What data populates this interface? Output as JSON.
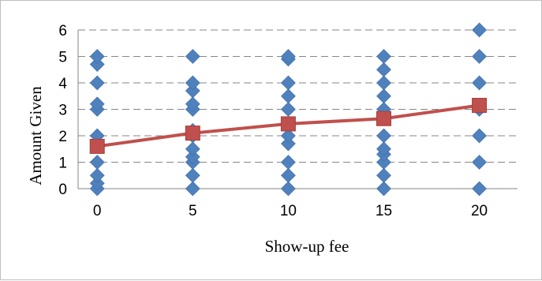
{
  "chart_data": {
    "type": "scatter",
    "title": "",
    "xlabel": "Show-up fee",
    "ylabel": "Amount Given",
    "xlim": [
      -1,
      22
    ],
    "ylim": [
      0,
      6
    ],
    "x_ticks": [
      0,
      5,
      10,
      15,
      20
    ],
    "y_ticks": [
      0,
      1,
      2,
      3,
      4,
      5,
      6
    ],
    "grid": "horizontal dashed",
    "legend": "none",
    "series": [
      {
        "type": "scatter",
        "marker": "diamond",
        "color": "#4f81bd",
        "points": [
          [
            0,
            0
          ],
          [
            0,
            0.2
          ],
          [
            0,
            0.5
          ],
          [
            0,
            1
          ],
          [
            0,
            2
          ],
          [
            0,
            3
          ],
          [
            0,
            3.2
          ],
          [
            0,
            4
          ],
          [
            0,
            4.7
          ],
          [
            0,
            5
          ],
          [
            5,
            0
          ],
          [
            5,
            0.5
          ],
          [
            5,
            1
          ],
          [
            5,
            1.2
          ],
          [
            5,
            1.5
          ],
          [
            5,
            2
          ],
          [
            5,
            2.2
          ],
          [
            5,
            3
          ],
          [
            5,
            3.2
          ],
          [
            5,
            3.7
          ],
          [
            5,
            4
          ],
          [
            5,
            5
          ],
          [
            10,
            0
          ],
          [
            10,
            0.5
          ],
          [
            10,
            1
          ],
          [
            10,
            1.7
          ],
          [
            10,
            2
          ],
          [
            10,
            3
          ],
          [
            10,
            3.5
          ],
          [
            10,
            4
          ],
          [
            10,
            4.9
          ],
          [
            10,
            5
          ],
          [
            15,
            0
          ],
          [
            15,
            0.5
          ],
          [
            15,
            1
          ],
          [
            15,
            1.3
          ],
          [
            15,
            1.5
          ],
          [
            15,
            2
          ],
          [
            15,
            3
          ],
          [
            15,
            3.5
          ],
          [
            15,
            4
          ],
          [
            15,
            4.5
          ],
          [
            15,
            5
          ],
          [
            20,
            0
          ],
          [
            20,
            1
          ],
          [
            20,
            2
          ],
          [
            20,
            3
          ],
          [
            20,
            4
          ],
          [
            20,
            5
          ],
          [
            20,
            6
          ]
        ]
      },
      {
        "type": "line",
        "marker": "square",
        "color": "#c0504d",
        "points": [
          [
            0,
            1.6
          ],
          [
            5,
            2.1
          ],
          [
            10,
            2.45
          ],
          [
            15,
            2.65
          ],
          [
            20,
            3.15
          ]
        ]
      }
    ]
  }
}
